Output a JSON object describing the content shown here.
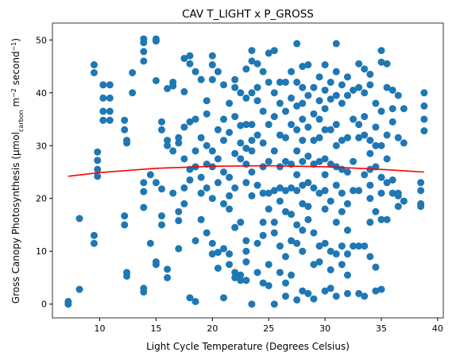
{
  "chart_data": {
    "type": "scatter",
    "title": "CAV T_LIGHT x P_GROSS",
    "xlabel": "Light Cycle Temperature (Degrees Celsius)",
    "ylabel": [
      "Gross Canopy Photosynthesis (μmol",
      "carbon",
      " m",
      "−2",
      " second",
      "−1",
      ")"
    ],
    "xlim": [
      5.8,
      40.5
    ],
    "ylim": [
      -2.6,
      53.2
    ],
    "xticks": [
      10,
      15,
      20,
      25,
      30,
      35,
      40
    ],
    "yticks": [
      0,
      10,
      20,
      30,
      40,
      50
    ],
    "grid": false,
    "series": [
      {
        "type": "scatter",
        "color": "#1f77b4",
        "x": [
          7.2,
          7.2,
          8.2,
          8.2,
          9.5,
          9.5,
          9.5,
          9.5,
          9.8,
          9.8,
          9.8,
          9.8,
          10.3,
          10.3,
          10.3,
          10.3,
          10.9,
          10.9,
          10.9,
          10.9,
          12.2,
          12.2,
          12.2,
          12.2,
          12.4,
          12.4,
          12.4,
          12.4,
          12.9,
          12.9,
          13.9,
          13.9,
          13.9,
          13.9,
          13.9,
          13.9,
          13.9,
          13.9,
          13.9,
          14.5,
          14.5,
          15,
          15,
          15,
          15,
          15,
          15,
          15.5,
          15.5,
          15.5,
          15.5,
          15.5,
          16,
          16,
          16,
          16,
          16,
          16.5,
          16.5,
          16.5,
          16.5,
          17,
          17,
          17,
          17,
          17,
          17.5,
          17.5,
          17.5,
          17.5,
          17.5,
          17.5,
          18,
          18,
          18,
          18,
          18,
          18,
          18.5,
          18.5,
          18.5,
          18.5,
          18.5,
          18.5,
          19,
          19,
          19,
          19,
          19,
          19.5,
          19.5,
          19.5,
          19.5,
          19.5,
          19.5,
          20,
          20,
          20,
          20,
          20,
          20,
          20,
          20,
          20.5,
          20.5,
          20.5,
          20.5,
          20.5,
          20.5,
          21,
          21,
          21,
          21,
          21,
          21,
          21,
          21.5,
          21.5,
          21.5,
          21.5,
          21.5,
          21.5,
          21.5,
          22,
          22,
          22,
          22,
          22,
          22,
          22,
          22,
          22.5,
          22.5,
          22.5,
          22.5,
          22.5,
          22.5,
          22.5,
          23,
          23,
          23,
          23,
          23,
          23,
          23,
          23,
          23,
          23,
          23.5,
          23.5,
          23.5,
          23.5,
          23.5,
          23.5,
          23.5,
          23.5,
          23.5,
          24,
          24,
          24,
          24,
          24,
          24,
          24,
          24.5,
          24.5,
          24.5,
          24.5,
          24.5,
          24.5,
          24.5,
          24.5,
          25,
          25,
          25,
          25,
          25,
          25,
          25,
          25,
          25.5,
          25.5,
          25.5,
          25.5,
          25.5,
          25.5,
          25.5,
          25.5,
          26,
          26,
          26,
          26,
          26,
          26,
          26,
          26,
          26.5,
          26.5,
          26.5,
          26.5,
          26.5,
          26.5,
          26.5,
          26.5,
          26.5,
          27,
          27,
          27,
          27,
          27,
          27,
          27,
          27,
          27.5,
          27.5,
          27.5,
          27.5,
          27.5,
          27.5,
          27.5,
          27.5,
          27.5,
          27.5,
          28,
          28,
          28,
          28,
          28,
          28,
          28,
          28,
          28,
          28,
          28,
          28.5,
          28.5,
          28.5,
          28.5,
          28.5,
          28.5,
          28.5,
          28.5,
          29,
          29,
          29,
          29,
          29,
          29,
          29,
          29,
          29.5,
          29.5,
          29.5,
          29.5,
          29.5,
          29.5,
          29.5,
          29.5,
          30,
          30,
          30,
          30,
          30,
          30,
          30,
          30,
          30,
          30,
          30.5,
          30.5,
          30.5,
          30.5,
          30.5,
          30.5,
          30.5,
          30.5,
          31,
          31,
          31,
          31,
          31,
          31,
          31,
          31,
          31,
          31,
          31.5,
          31.5,
          31.5,
          31.5,
          31.5,
          31.5,
          31.5,
          31.5,
          32,
          32,
          32,
          32,
          32,
          32,
          32,
          32,
          32,
          32.5,
          32.5,
          32.5,
          32.5,
          32.5,
          33,
          33,
          33,
          33,
          33,
          33,
          33,
          33.5,
          33.5,
          33.5,
          33.5,
          33.5,
          33.5,
          33.5,
          34,
          34,
          34,
          34,
          34,
          34,
          34,
          34,
          34,
          34.5,
          34.5,
          34.5,
          34.5,
          34.5,
          34.5,
          34.5,
          35,
          35,
          35,
          35,
          35,
          35,
          35,
          35,
          35.5,
          35.5,
          35.5,
          35.5,
          35.5,
          35.5,
          36,
          36,
          36,
          36,
          36,
          36.5,
          36.5,
          36.5,
          36.5,
          36.5,
          37,
          37,
          37,
          38.5,
          38.5,
          38.5,
          38.5,
          38.8,
          38.8,
          38.8,
          38.8
        ],
        "values": [
          0,
          0.5,
          2.8,
          16.2,
          45.3,
          43.8,
          13,
          11.5,
          28.8,
          27.2,
          25.5,
          24.2,
          41.5,
          39,
          36.5,
          34.8,
          41.5,
          39,
          36.5,
          34.8,
          34.8,
          33,
          16.7,
          15,
          31,
          30.5,
          6,
          5.3,
          43.8,
          40,
          50.2,
          49.5,
          47.8,
          46,
          23,
          21.3,
          18.3,
          3,
          2.3,
          24.5,
          11.5,
          50.2,
          49.8,
          42.3,
          23,
          8,
          7.5,
          34.5,
          33,
          21.8,
          16.7,
          15,
          40.8,
          31,
          30,
          6.6,
          5,
          42,
          41.3,
          29,
          21,
          31.5,
          30.5,
          17.5,
          15.8,
          10.5,
          46.5,
          40.2,
          33.5,
          27.5,
          22,
          19,
          47,
          45.5,
          34.5,
          25.5,
          23.5,
          1.2,
          44,
          35,
          29,
          26,
          12,
          0.5,
          42.5,
          31.5,
          24,
          21,
          16,
          38.5,
          36,
          30,
          26.5,
          22,
          13.5,
          47,
          45.3,
          42.5,
          29,
          26,
          20,
          11.5,
          9.5,
          44,
          33,
          27.5,
          23,
          9.8,
          6.8,
          41.5,
          35,
          31,
          25,
          19,
          10.5,
          1.2,
          38,
          32.5,
          24,
          20.5,
          18,
          9.5,
          7.5,
          42.5,
          41,
          35.5,
          28.5,
          22,
          14.5,
          6,
          5,
          40,
          33.8,
          30.5,
          27.5,
          15.5,
          5.5,
          4.5,
          44.5,
          39,
          34,
          29.5,
          26.5,
          23,
          12,
          10,
          8,
          4.5,
          48,
          46,
          40,
          34,
          31,
          29,
          25,
          20.5,
          0,
          45.5,
          41,
          38.5,
          32,
          22.5,
          11.5,
          6,
          44,
          36.5,
          30.5,
          26,
          21,
          15.5,
          13,
          4,
          47.5,
          42,
          34,
          27,
          21,
          18,
          7.5,
          3.5,
          48,
          40,
          35.5,
          29,
          21.5,
          15.5,
          13.5,
          0,
          42,
          38,
          32,
          26,
          22,
          19.5,
          11,
          6,
          42,
          36.5,
          31.5,
          27,
          21.5,
          17.5,
          9,
          4,
          1.5,
          44,
          39,
          34,
          26.5,
          22,
          17,
          12,
          5.5,
          49.3,
          42,
          37.5,
          33,
          29,
          24.5,
          21.5,
          15,
          11.5,
          0.8,
          45,
          41,
          38,
          35,
          31,
          27,
          22.5,
          19,
          14,
          10,
          2.5,
          45.3,
          39.5,
          33.5,
          28,
          23,
          18.5,
          16,
          2,
          41,
          36,
          31,
          26.5,
          22,
          13.5,
          7.5,
          1,
          43,
          38.5,
          35,
          31.5,
          27,
          21,
          11,
          8,
          45.3,
          40.5,
          37,
          33,
          27.5,
          24.5,
          21.5,
          18,
          11.5,
          2.5,
          42,
          38.8,
          33,
          26.5,
          19.5,
          10,
          6.5,
          3,
          49.3,
          44,
          39.5,
          34,
          30,
          26,
          22.5,
          15.5,
          9.5,
          1.5,
          41.5,
          38,
          31,
          25.5,
          21,
          17.5,
          11,
          7.5,
          43,
          39.5,
          31.5,
          25,
          19,
          14,
          9.5,
          5.5,
          2,
          40.5,
          35,
          27,
          21.5,
          11,
          45.5,
          41,
          34,
          31.5,
          21.5,
          11,
          2,
          44.5,
          40,
          35.5,
          32,
          24.5,
          11,
          1.5,
          43.5,
          41.5,
          31,
          28.5,
          25.5,
          22.5,
          20,
          15.5,
          9,
          38,
          33.5,
          30,
          26,
          17.5,
          7,
          2.5,
          48,
          45.8,
          36.5,
          30,
          24,
          21,
          16,
          2.8,
          45.5,
          41,
          32,
          27.5,
          23,
          16,
          40.5,
          37,
          34.5,
          23.5,
          21,
          39.5,
          31.5,
          21,
          20.5,
          18.5,
          37,
          30.5,
          19.5,
          23,
          21.5,
          19,
          18.5,
          40,
          37.5,
          35,
          32.8
        ]
      },
      {
        "type": "line",
        "color": "#ff0000",
        "x": [
          7.2,
          10,
          15,
          20,
          25,
          30,
          35,
          38.8
        ],
        "values": [
          24.2,
          24.9,
          25.7,
          26.1,
          26.2,
          26.0,
          25.5,
          25.0
        ]
      }
    ]
  }
}
